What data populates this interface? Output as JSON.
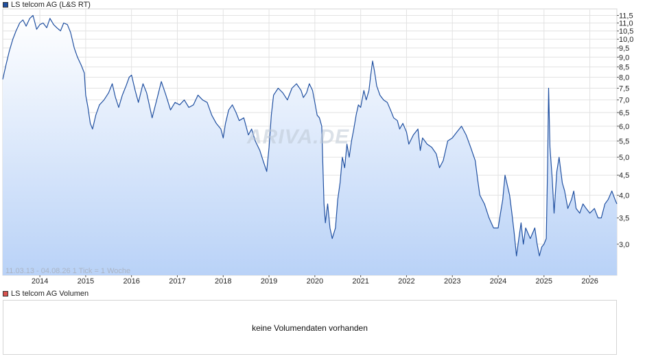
{
  "colors": {
    "line": "#1f4fa0",
    "fill_top": "#ffffff",
    "fill_bottom": "#b9d2f7",
    "grid": "#e2e2e2",
    "price_swatch": "#1f4fa0",
    "volume_swatch": "#d9534f"
  },
  "legend": {
    "price": "LS telcom AG (L&S RT)",
    "volume": "LS telcom AG Volumen"
  },
  "range_label": "11.03.13 - 04.08.26   1 Tick = 1 Woche",
  "watermark": "ARIVA.DE",
  "volume_message": "keine Volumendaten vorhanden",
  "chart_data": {
    "type": "line",
    "title": "LS telcom AG (L&S RT)",
    "xlabel": "",
    "ylabel": "",
    "y_scale": "log",
    "grid": true,
    "legend_position": "top-left",
    "x_range": [
      2013.19,
      2026.59
    ],
    "ylim": [
      2.5,
      11.9
    ],
    "x_ticks": [
      "2014",
      "2015",
      "2016",
      "2017",
      "2018",
      "2019",
      "2020",
      "2021",
      "2022",
      "2023",
      "2024",
      "2025",
      "2026"
    ],
    "y_ticks": [
      "3,0",
      "3,5",
      "4,0",
      "4,5",
      "5,0",
      "5,5",
      "6,0",
      "6,5",
      "7,0",
      "7,5",
      "8,0",
      "8,5",
      "9,0",
      "9,5",
      "10,0",
      "10,5",
      "11,0",
      "11,5"
    ],
    "series": [
      {
        "values": [
          [
            2013.19,
            7.9
          ],
          [
            2013.26,
            8.6
          ],
          [
            2013.33,
            9.3
          ],
          [
            2013.41,
            10.0
          ],
          [
            2013.48,
            10.5
          ],
          [
            2013.56,
            11.0
          ],
          [
            2013.63,
            11.2
          ],
          [
            2013.7,
            10.8
          ],
          [
            2013.78,
            11.3
          ],
          [
            2013.85,
            11.5
          ],
          [
            2013.93,
            10.6
          ],
          [
            2014.0,
            10.9
          ],
          [
            2014.07,
            11.0
          ],
          [
            2014.15,
            10.7
          ],
          [
            2014.22,
            11.3
          ],
          [
            2014.3,
            10.9
          ],
          [
            2014.37,
            10.7
          ],
          [
            2014.45,
            10.5
          ],
          [
            2014.52,
            11.0
          ],
          [
            2014.6,
            10.9
          ],
          [
            2014.67,
            10.4
          ],
          [
            2014.75,
            9.5
          ],
          [
            2014.82,
            9.0
          ],
          [
            2014.9,
            8.6
          ],
          [
            2014.97,
            8.2
          ],
          [
            2015.0,
            7.2
          ],
          [
            2015.05,
            6.7
          ],
          [
            2015.1,
            6.1
          ],
          [
            2015.15,
            5.9
          ],
          [
            2015.22,
            6.4
          ],
          [
            2015.3,
            6.8
          ],
          [
            2015.4,
            7.0
          ],
          [
            2015.5,
            7.3
          ],
          [
            2015.58,
            7.7
          ],
          [
            2015.65,
            7.1
          ],
          [
            2015.72,
            6.7
          ],
          [
            2015.8,
            7.2
          ],
          [
            2015.88,
            7.6
          ],
          [
            2015.95,
            8.0
          ],
          [
            2016.0,
            8.1
          ],
          [
            2016.08,
            7.4
          ],
          [
            2016.15,
            6.9
          ],
          [
            2016.25,
            7.7
          ],
          [
            2016.33,
            7.3
          ],
          [
            2016.4,
            6.7
          ],
          [
            2016.45,
            6.3
          ],
          [
            2016.55,
            7.0
          ],
          [
            2016.65,
            7.8
          ],
          [
            2016.75,
            7.2
          ],
          [
            2016.85,
            6.6
          ],
          [
            2016.95,
            6.9
          ],
          [
            2017.05,
            6.8
          ],
          [
            2017.15,
            7.0
          ],
          [
            2017.25,
            6.7
          ],
          [
            2017.35,
            6.8
          ],
          [
            2017.45,
            7.2
          ],
          [
            2017.55,
            7.0
          ],
          [
            2017.65,
            6.9
          ],
          [
            2017.75,
            6.4
          ],
          [
            2017.85,
            6.1
          ],
          [
            2017.95,
            5.9
          ],
          [
            2018.0,
            5.6
          ],
          [
            2018.05,
            6.1
          ],
          [
            2018.12,
            6.6
          ],
          [
            2018.2,
            6.8
          ],
          [
            2018.28,
            6.5
          ],
          [
            2018.35,
            6.2
          ],
          [
            2018.45,
            6.3
          ],
          [
            2018.55,
            5.7
          ],
          [
            2018.62,
            5.9
          ],
          [
            2018.7,
            5.5
          ],
          [
            2018.8,
            5.2
          ],
          [
            2018.87,
            4.9
          ],
          [
            2018.95,
            4.6
          ],
          [
            2019.0,
            5.3
          ],
          [
            2019.05,
            6.4
          ],
          [
            2019.1,
            7.2
          ],
          [
            2019.2,
            7.5
          ],
          [
            2019.3,
            7.3
          ],
          [
            2019.4,
            7.0
          ],
          [
            2019.5,
            7.5
          ],
          [
            2019.6,
            7.7
          ],
          [
            2019.7,
            7.4
          ],
          [
            2019.75,
            7.1
          ],
          [
            2019.82,
            7.3
          ],
          [
            2019.88,
            7.7
          ],
          [
            2019.95,
            7.4
          ],
          [
            2020.0,
            6.9
          ],
          [
            2020.05,
            6.4
          ],
          [
            2020.1,
            6.3
          ],
          [
            2020.15,
            6.0
          ],
          [
            2020.17,
            5.0
          ],
          [
            2020.2,
            3.8
          ],
          [
            2020.23,
            3.4
          ],
          [
            2020.28,
            3.8
          ],
          [
            2020.33,
            3.3
          ],
          [
            2020.38,
            3.1
          ],
          [
            2020.45,
            3.3
          ],
          [
            2020.5,
            3.9
          ],
          [
            2020.55,
            4.3
          ],
          [
            2020.6,
            5.0
          ],
          [
            2020.65,
            4.7
          ],
          [
            2020.7,
            5.4
          ],
          [
            2020.75,
            5.0
          ],
          [
            2020.8,
            5.5
          ],
          [
            2020.85,
            5.9
          ],
          [
            2020.9,
            6.4
          ],
          [
            2020.95,
            6.8
          ],
          [
            2021.0,
            6.7
          ],
          [
            2021.07,
            7.4
          ],
          [
            2021.12,
            7.0
          ],
          [
            2021.18,
            7.4
          ],
          [
            2021.22,
            8.1
          ],
          [
            2021.26,
            8.8
          ],
          [
            2021.3,
            8.3
          ],
          [
            2021.35,
            7.6
          ],
          [
            2021.42,
            7.2
          ],
          [
            2021.5,
            7.0
          ],
          [
            2021.58,
            6.9
          ],
          [
            2021.65,
            6.6
          ],
          [
            2021.72,
            6.3
          ],
          [
            2021.8,
            6.2
          ],
          [
            2021.85,
            5.9
          ],
          [
            2021.92,
            6.1
          ],
          [
            2022.0,
            5.8
          ],
          [
            2022.05,
            5.4
          ],
          [
            2022.15,
            5.7
          ],
          [
            2022.25,
            5.9
          ],
          [
            2022.3,
            5.2
          ],
          [
            2022.35,
            5.6
          ],
          [
            2022.45,
            5.4
          ],
          [
            2022.55,
            5.3
          ],
          [
            2022.65,
            5.1
          ],
          [
            2022.72,
            4.7
          ],
          [
            2022.8,
            4.9
          ],
          [
            2022.9,
            5.5
          ],
          [
            2023.0,
            5.6
          ],
          [
            2023.1,
            5.8
          ],
          [
            2023.2,
            6.0
          ],
          [
            2023.3,
            5.7
          ],
          [
            2023.4,
            5.3
          ],
          [
            2023.5,
            4.9
          ],
          [
            2023.55,
            4.4
          ],
          [
            2023.6,
            4.0
          ],
          [
            2023.7,
            3.8
          ],
          [
            2023.8,
            3.5
          ],
          [
            2023.9,
            3.3
          ],
          [
            2024.0,
            3.3
          ],
          [
            2024.05,
            3.6
          ],
          [
            2024.1,
            3.9
          ],
          [
            2024.15,
            4.5
          ],
          [
            2024.25,
            4.0
          ],
          [
            2024.3,
            3.6
          ],
          [
            2024.35,
            3.2
          ],
          [
            2024.4,
            2.8
          ],
          [
            2024.45,
            3.1
          ],
          [
            2024.5,
            3.4
          ],
          [
            2024.55,
            3.0
          ],
          [
            2024.6,
            3.3
          ],
          [
            2024.7,
            3.1
          ],
          [
            2024.8,
            3.3
          ],
          [
            2024.85,
            3.0
          ],
          [
            2024.9,
            2.8
          ],
          [
            2024.95,
            2.95
          ],
          [
            2025.0,
            3.0
          ],
          [
            2025.05,
            3.1
          ],
          [
            2025.08,
            4.8
          ],
          [
            2025.1,
            7.5
          ],
          [
            2025.13,
            5.3
          ],
          [
            2025.18,
            4.4
          ],
          [
            2025.22,
            3.6
          ],
          [
            2025.28,
            4.6
          ],
          [
            2025.33,
            5.0
          ],
          [
            2025.4,
            4.3
          ],
          [
            2025.45,
            4.1
          ],
          [
            2025.52,
            3.7
          ],
          [
            2025.6,
            3.9
          ],
          [
            2025.65,
            4.1
          ],
          [
            2025.7,
            3.7
          ],
          [
            2025.78,
            3.6
          ],
          [
            2025.85,
            3.8
          ],
          [
            2025.92,
            3.7
          ],
          [
            2026.0,
            3.6
          ],
          [
            2026.1,
            3.7
          ],
          [
            2026.18,
            3.5
          ],
          [
            2026.25,
            3.5
          ],
          [
            2026.33,
            3.8
          ],
          [
            2026.4,
            3.9
          ],
          [
            2026.48,
            4.1
          ],
          [
            2026.55,
            3.9
          ],
          [
            2026.59,
            3.8
          ]
        ]
      }
    ]
  }
}
